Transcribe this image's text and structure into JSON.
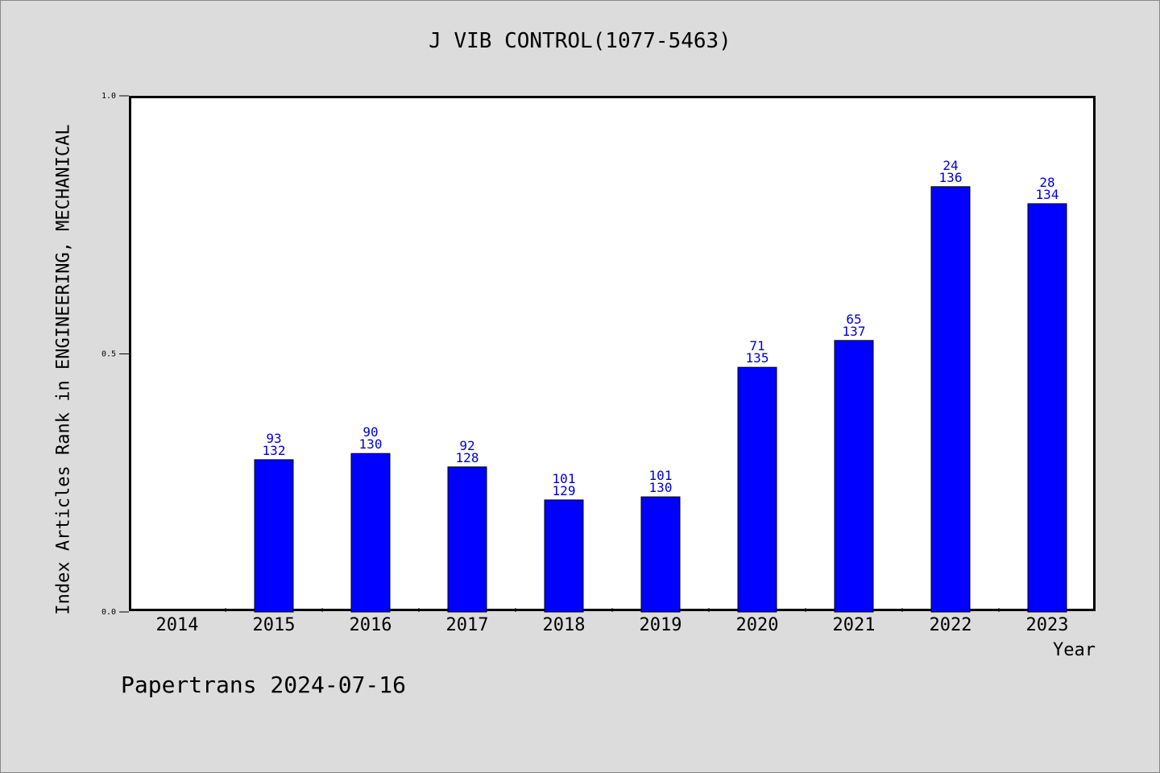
{
  "chart_data": {
    "type": "bar",
    "title": "J VIB CONTROL(1077-5463)",
    "xlabel": "Year",
    "ylabel": "Index Articles Rank in ENGINEERING, MECHANICAL",
    "ylim": [
      0,
      1
    ],
    "yticks": [
      "0.0",
      "0.5",
      "1.0"
    ],
    "categories": [
      "2014",
      "2015",
      "2016",
      "2017",
      "2018",
      "2019",
      "2020",
      "2021",
      "2022",
      "2023"
    ],
    "values": [
      null,
      0.295,
      0.307,
      0.281,
      0.217,
      0.223,
      0.474,
      0.526,
      0.824,
      0.791
    ],
    "rank_labels": [
      null,
      "93",
      "90",
      "92",
      "101",
      "101",
      "71",
      "65",
      "24",
      "28"
    ],
    "total_labels": [
      null,
      "132",
      "130",
      "128",
      "129",
      "130",
      "135",
      "137",
      "136",
      "134"
    ],
    "bar_color": "#0000ff",
    "label_color": "#0000cc",
    "grid": false,
    "legend": "none"
  },
  "footer": "Papertrans 2024-07-16"
}
